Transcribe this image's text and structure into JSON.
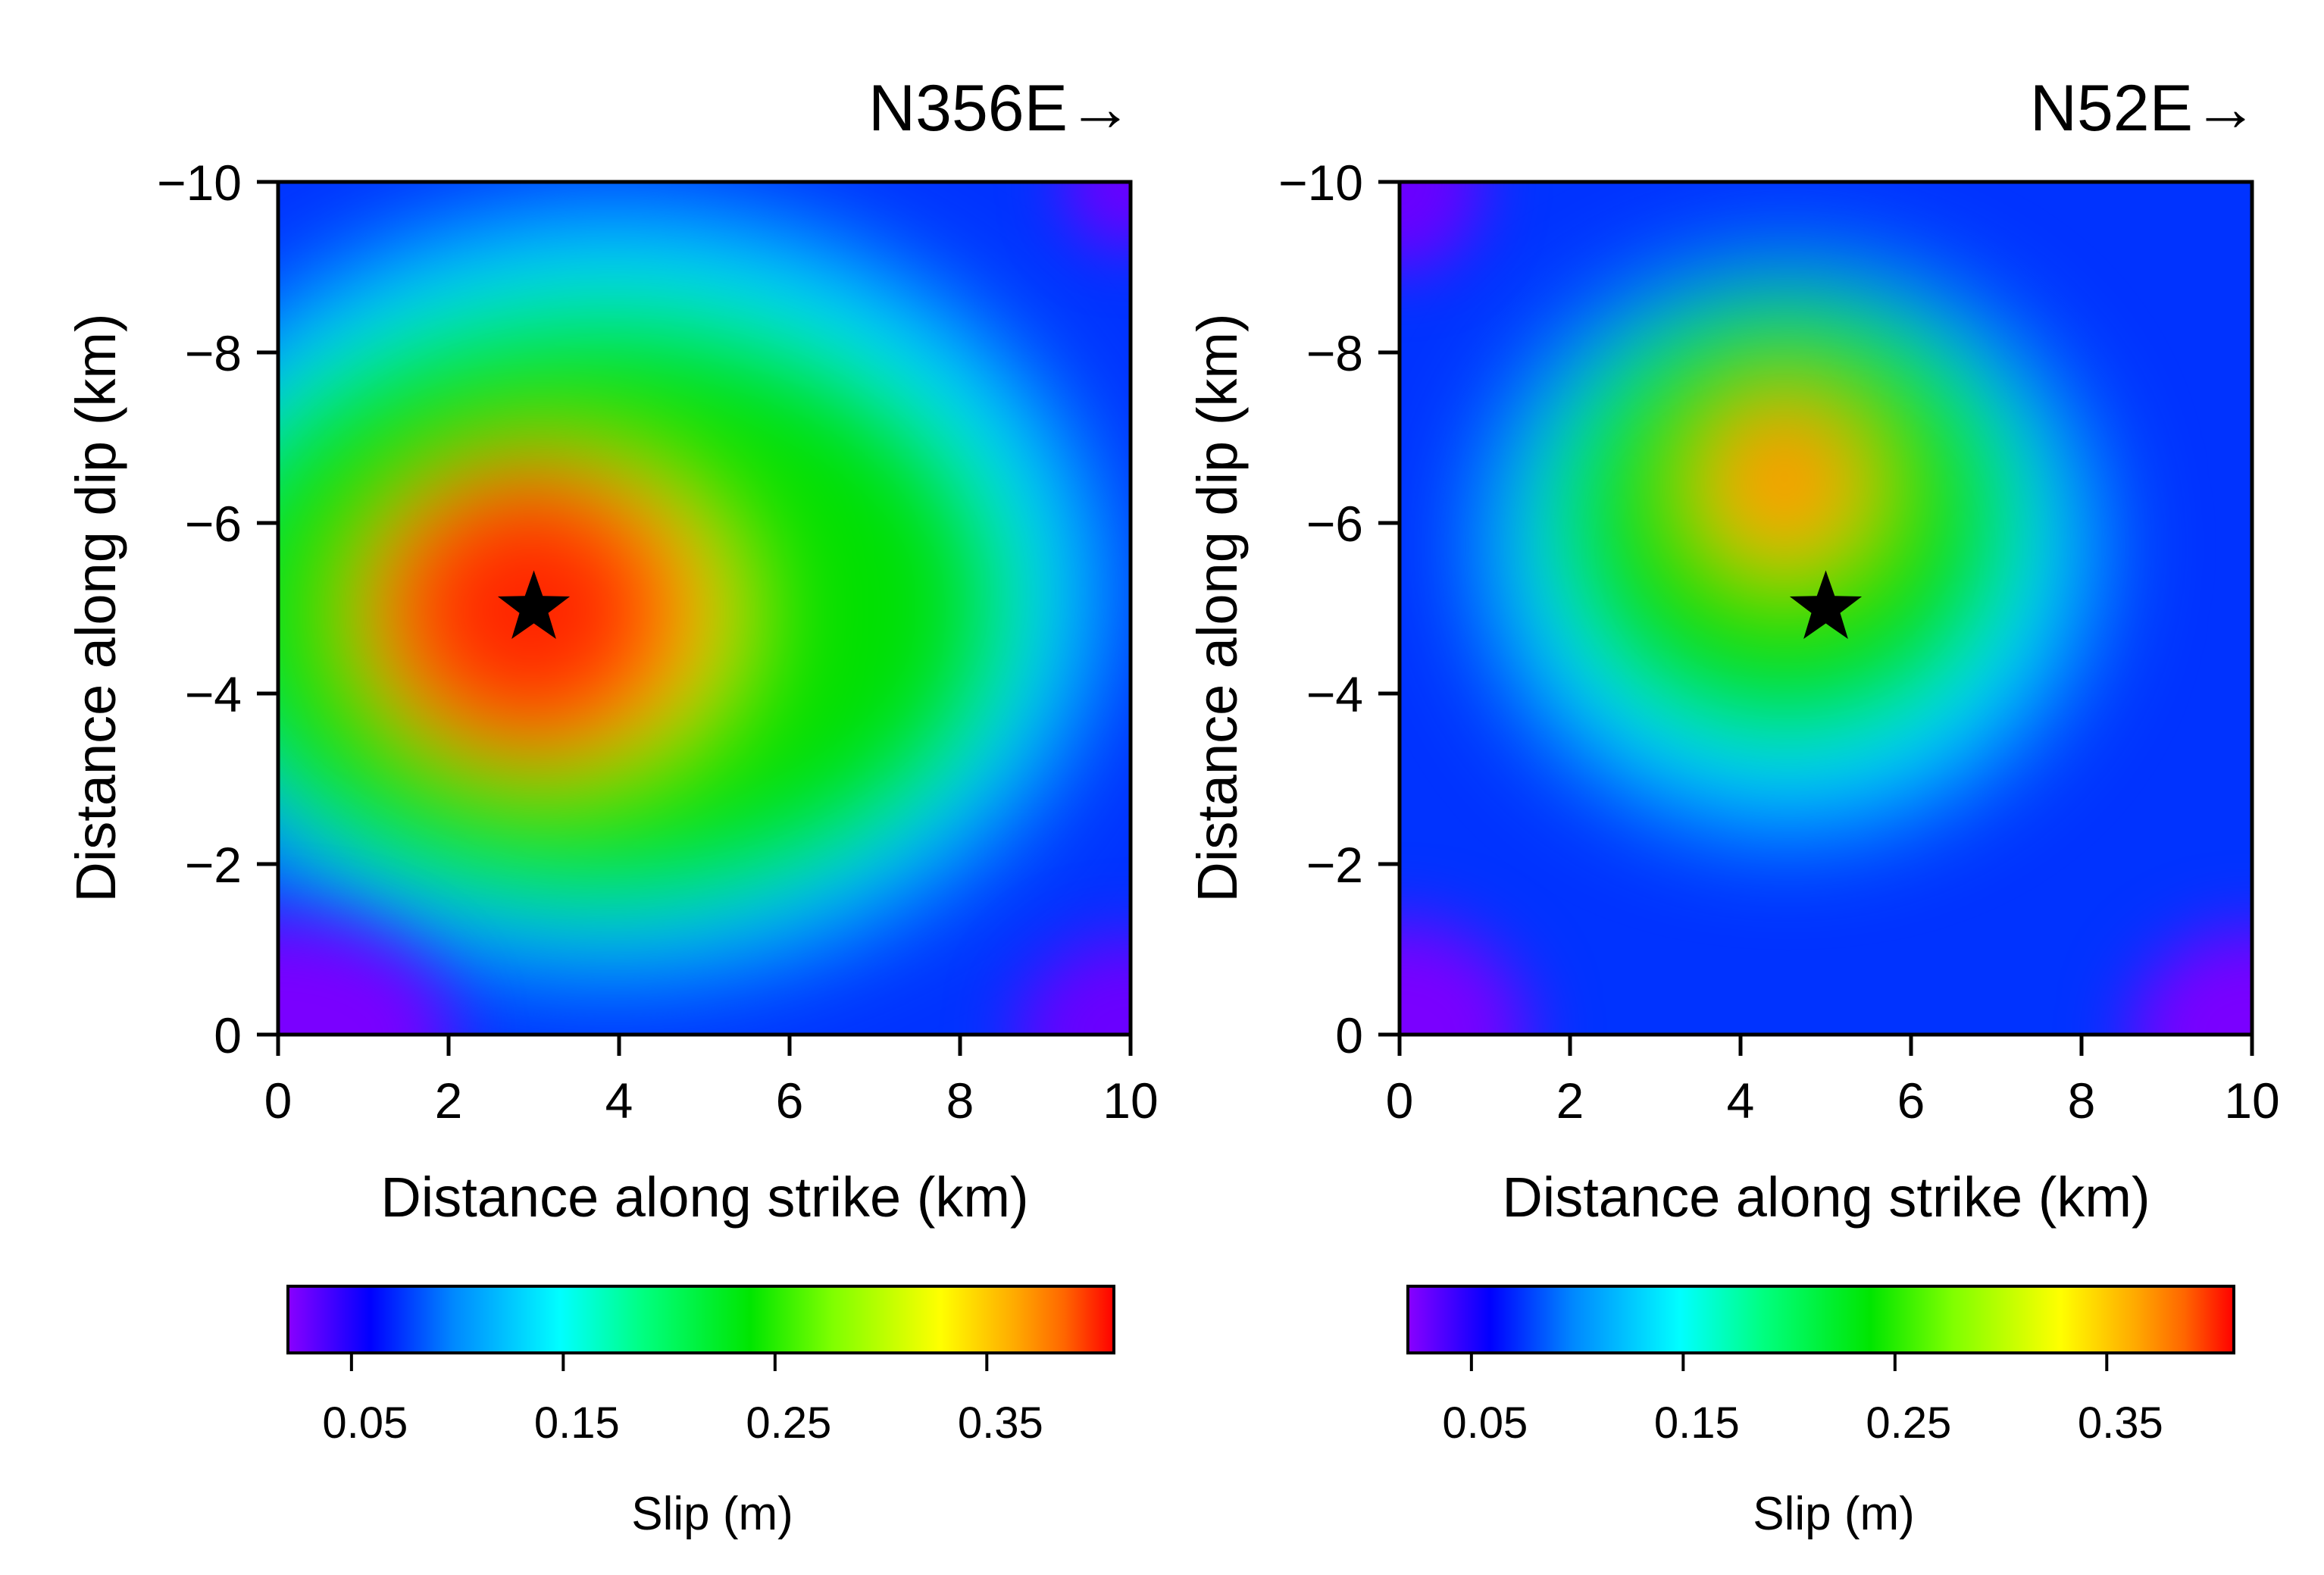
{
  "chart_data": [
    {
      "type": "heatmap",
      "title": "N356E→",
      "xlabel": "Distance along strike (km)",
      "ylabel": "Distance along dip (km)",
      "xlim": [
        0,
        10
      ],
      "ylim": [
        0,
        -10
      ],
      "xticks": [
        0,
        2,
        4,
        6,
        8,
        10
      ],
      "yticks": [
        0,
        -2,
        -4,
        -6,
        -8,
        -10
      ],
      "ytick_labels": [
        "0",
        "−2",
        "−4",
        "−6",
        "−8",
        "−10"
      ],
      "peak_slip_m": 0.42,
      "peak_location": {
        "x": 3.0,
        "y": -5.0
      },
      "hypocenter": {
        "x": 3.0,
        "y": -5.0,
        "marker": "star"
      },
      "colorbar": {
        "label": "Slip (m)",
        "ticks": [
          0.05,
          0.15,
          0.25,
          0.35
        ],
        "tick_labels": [
          "0.05",
          "0.15",
          "0.25",
          "0.35"
        ],
        "range": [
          0.02,
          0.41
        ]
      }
    },
    {
      "type": "heatmap",
      "title": "N52E→",
      "xlabel": "Distance along strike (km)",
      "ylabel": "Distance along dip (km)",
      "xlim": [
        0,
        10
      ],
      "ylim": [
        0,
        -10
      ],
      "xticks": [
        0,
        2,
        4,
        6,
        8,
        10
      ],
      "yticks": [
        0,
        -2,
        -4,
        -6,
        -8,
        -10
      ],
      "ytick_labels": [
        "0",
        "−2",
        "−4",
        "−6",
        "−8",
        "−10"
      ],
      "peak_slip_m": 0.34,
      "peak_location": {
        "x": 4.5,
        "y": -6.5
      },
      "hypocenter": {
        "x": 5.0,
        "y": -5.0,
        "marker": "star"
      },
      "colorbar": {
        "label": "Slip (m)",
        "ticks": [
          0.05,
          0.15,
          0.25,
          0.35
        ],
        "tick_labels": [
          "0.05",
          "0.15",
          "0.25",
          "0.35"
        ],
        "range": [
          0.02,
          0.41
        ]
      }
    }
  ],
  "colormap": [
    "#8a00ff",
    "#0000ff",
    "#0088ff",
    "#00ffff",
    "#00ff80",
    "#00e600",
    "#80ff00",
    "#ffff00",
    "#ffaa00",
    "#ff6600",
    "#ff0000"
  ]
}
